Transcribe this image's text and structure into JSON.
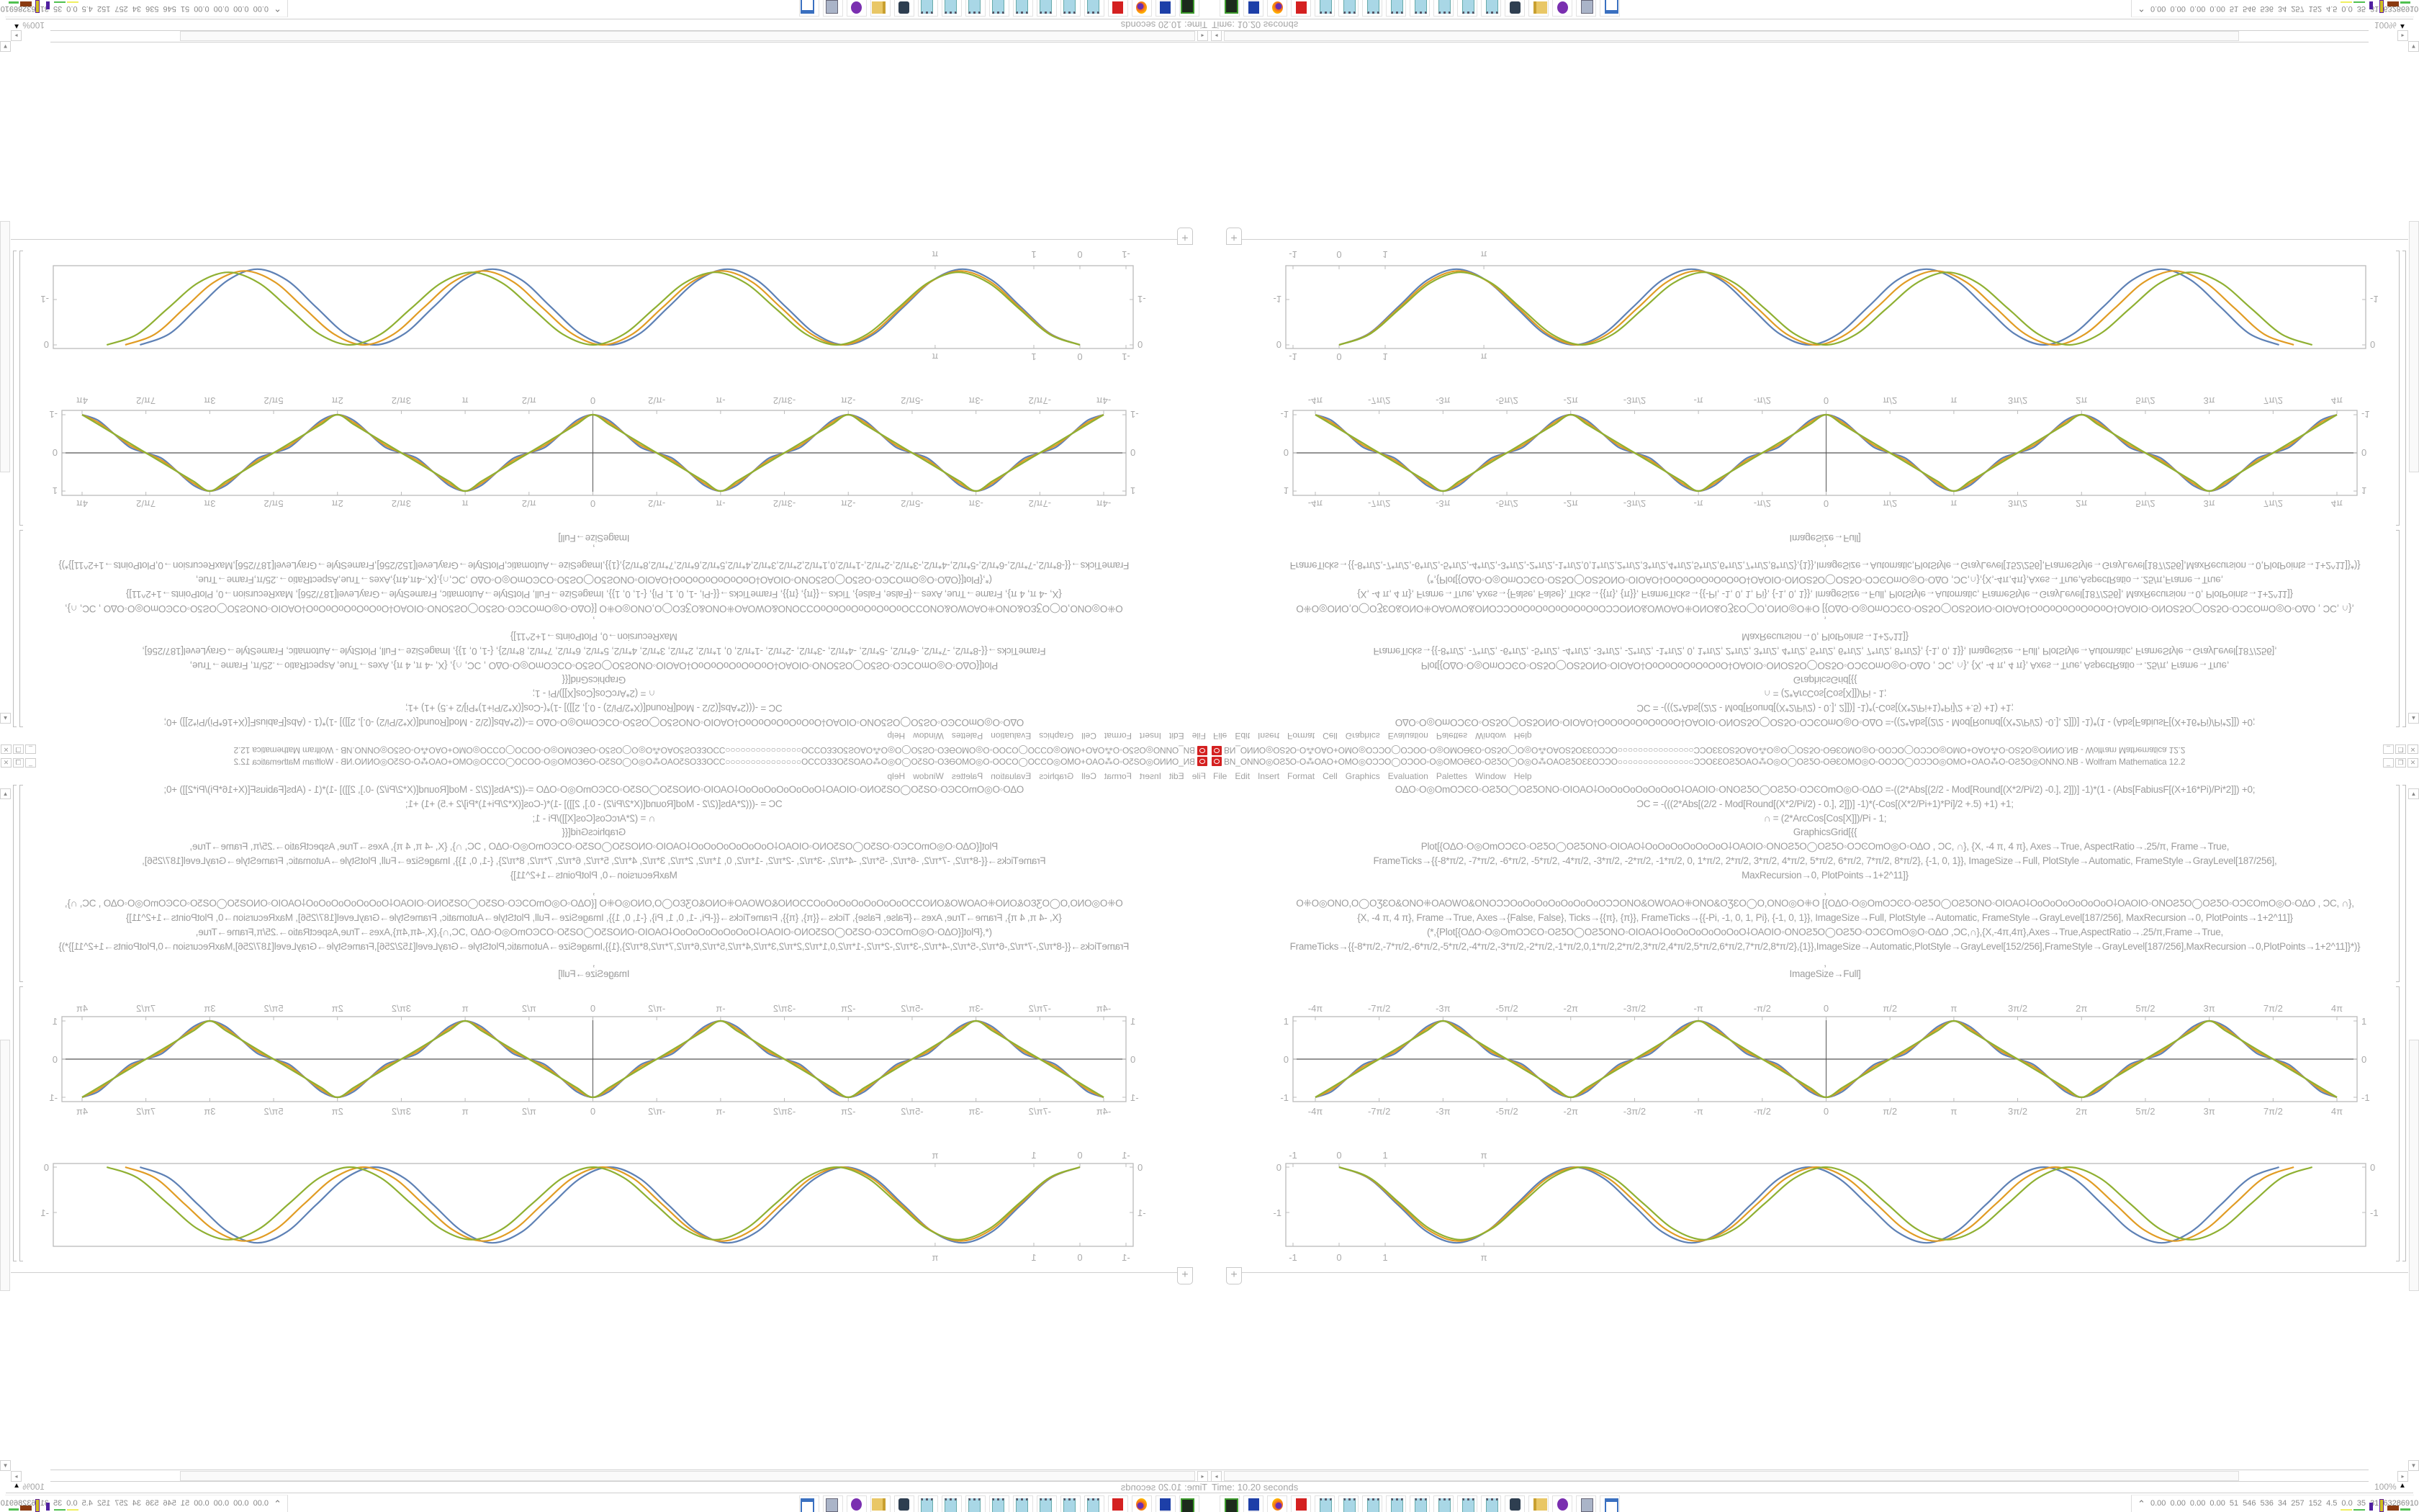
{
  "window": {
    "title": "BN_ONNO◎OƧƼO◦O⁂OAO+OMO◎OƆƆO◯OƆOO◦O◎OMOƏƐO◦OƧƼO◯O◎O⁂OAOƧƼOƐƐOƆƆO○○○○○○○○○○○○○○○ƆƆOƐƐOƧƼOAO⁂O◎O◯OƧƼO◦OƏƐOMO◎O◦OOƆO◯OƆƆO◎OMO+OAO⁂O◦OƧƼO◎ONNO.NB - Wolfram Mathematica 12.2",
    "controls": {
      "minimize": "_",
      "restore": "❐",
      "close": "✕"
    }
  },
  "menu": [
    "File",
    "Edit",
    "Insert",
    "Format",
    "Cell",
    "Graphics",
    "Evaluation",
    "Palettes",
    "Window",
    "Help"
  ],
  "notebook": {
    "code_lines": [
      "ΟΔΟ◦Ο◎ΟmΟϽϾΟ◦ΟƧƼΟ◯ΟƧƼΟNΟ◦ΟΙΟΑΟ⸸ΟοΟοΟοΟοΟοΟοΟ⸸ΟΑΟΙΟ◦ΟNΟƧƼΟ◯ΟƧƼΟ◦ΟϽϾΟmΟ◎Ο◦ΟΔΟ    =-((2*Abs[(2/2 - Mod[Round[(X*2/Pi/2) -0.], 2]])] -1)*(1 - (Abs[FabiusF[(X+16*Pi)/Pi*2]]) +0;",
      "ƆC = -(((2*Abs[(2/2 - Mod[Round[(X*2/Pi/2) - 0.], 2]])] -1)*(-Cos[(X*2/Pi+1)*Pi]/2 +.5) +1) +1;",
      "∩ = (2*ArcCos[Cos[X]])/Pi - 1;",
      "GraphicsGrid[{{",
      "Plot[{ΟΔΟ◦Ο◎ΟmΟϽϾΟ◦ΟƧƼΟ◯ΟƧƼΟNΟ◦ΟΙΟΑΟ⸸ΟοΟοΟοΟοΟοΟοΟ⸸ΟΑΟΙΟ◦ΟNΟƧƼΟ◯ΟƧƼΟ◦ΟϽϾΟmΟ◎Ο◦ΟΔΟ    , ƆC, ∩}, {X, -4 π, 4 π}, Axes→True, AspectRatio→.25/π, Frame→True,",
      "FrameTicks→{{-8*π/2, -7*π/2, -6*π/2, -5*π/2, -4*π/2, -3*π/2, -2*π/2, -1*π/2, 0, 1*π/2, 2*π/2, 3*π/2, 4*π/2, 5*π/2, 6*π/2, 7*π/2, 8*π/2}, {-1, 0, 1}}, ImageSize→Full, PlotStyle→Automatic, FrameStyle→GrayLevel[187/256],",
      "MaxRecursion→0, PlotPoints→1+2^11]}",
      ",",
      "Ο⁜Ο◎ΟNΟ,Ο◯ΟƷƐΟ&ΟNΟ⁜ΟΑΟWΟ&ΟNΟƆƆΟοΟοΟοΟοΟοΟοΟοΟƆƆΟNΟ&ΟWΟΑΟ⁜ΟNΟ&ΟƷƐΟ◯Ο,ΟNΟ◎Ο⁜Ο   [{ΟΔΟ◦Ο◎ΟmΟϽϾΟ◦ΟƧƼΟ◯ΟƧƼΟNΟ◦ΟΙΟΑΟ⸸ΟοΟοΟοΟοΟοΟοΟ⸸ΟΑΟΙΟ◦ΟNΟƧƼΟ◯ΟƧƼΟ◦ΟϽϾΟmΟ◎Ο◦ΟΔΟ    , ƆC, ∩},",
      "{X, -4 π, 4 π}, Frame→True, Axes→{False, False}, Ticks→{{π}, {π}}, FrameTicks→{{-Pi, -1, 0, 1, Pi}, {-1, 0, 1}}, ImageSize→Full, PlotStyle→Automatic, FrameStyle→GrayLevel[187/256], MaxRecursion→0, PlotPoints→1+2^11]}",
      "(*,{Plot[{ΟΔΟ◦Ο◎ΟmΟϽϾΟ◦ΟƧƼΟ◯ΟƧƼΟNΟ◦ΟΙΟΑΟ⸸ΟοΟοΟοΟοΟοΟοΟ⸸ΟΑΟΙΟ◦ΟNΟƧƼΟ◯ΟƧƼΟ◦ΟϽϾΟmΟ◎Ο◦ΟΔΟ    ,ƆC,∩},{X,-4π,4π},Axes→True,AspectRatio→.25/π,Frame→True,",
      "FrameTicks→{{-8*π/2,-7*π/2,-6*π/2,-5*π/2,-4*π/2,-3*π/2,-2*π/2,-1*π/2,0,1*π/2,2*π/2,3*π/2,4*π/2,5*π/2,6*π/2,7*π/2,8*π/2},{1}},ImageSize→Automatic,PlotStyle→GrayLevel[152/256],FrameStyle→GrayLevel[187/256],MaxRecursion→0,PlotPoints→1+2^11]}*)}",
      ",",
      "ImageSize→Full]"
    ],
    "add_cell_label": "+"
  },
  "chart_data": [
    {
      "type": "line",
      "x_range": [
        -12.566,
        12.566
      ],
      "y_range": [
        -1,
        1
      ],
      "frame": true,
      "axes": true,
      "x_ticks": [
        {
          "value": -12.566,
          "label": "-4π"
        },
        {
          "value": -10.996,
          "label": "-7π/2"
        },
        {
          "value": -9.425,
          "label": "-3π"
        },
        {
          "value": -7.854,
          "label": "-5π/2"
        },
        {
          "value": -6.283,
          "label": "-2π"
        },
        {
          "value": -4.712,
          "label": "-3π/2"
        },
        {
          "value": -3.142,
          "label": "-π"
        },
        {
          "value": -1.571,
          "label": "-π/2"
        },
        {
          "value": 0,
          "label": "0"
        },
        {
          "value": 1.571,
          "label": "π/2"
        },
        {
          "value": 3.142,
          "label": "π"
        },
        {
          "value": 4.712,
          "label": "3π/2"
        },
        {
          "value": 6.283,
          "label": "2π"
        },
        {
          "value": 7.854,
          "label": "5π/2"
        },
        {
          "value": 9.425,
          "label": "3π"
        },
        {
          "value": 10.996,
          "label": "7π/2"
        },
        {
          "value": 12.566,
          "label": "4π"
        }
      ],
      "y_ticks": [
        {
          "value": 1,
          "label": "1"
        },
        {
          "value": 0,
          "label": "0"
        },
        {
          "value": -1,
          "label": "-1"
        }
      ],
      "x": [
        -12.566,
        -12.174,
        -11.781,
        -11.388,
        -10.996,
        -10.603,
        -10.21,
        -9.817,
        -9.425,
        -9.032,
        -8.639,
        -8.247,
        -7.854,
        -7.461,
        -7.069,
        -6.676,
        -6.283,
        -5.89,
        -5.498,
        -5.105,
        -4.712,
        -4.32,
        -3.927,
        -3.534,
        -3.142,
        -2.749,
        -2.356,
        -1.963,
        -1.571,
        -1.178,
        -0.785,
        -0.393,
        0,
        0.393,
        0.785,
        1.178,
        1.571,
        1.963,
        2.356,
        2.749,
        3.142,
        3.534,
        3.927,
        4.32,
        4.712,
        5.105,
        5.498,
        5.89,
        6.283,
        6.676,
        7.069,
        7.461,
        7.854,
        8.247,
        8.639,
        9.032,
        9.425,
        9.817,
        10.21,
        10.603,
        10.996,
        11.388,
        11.781,
        12.174,
        12.566
      ],
      "series": [
        {
          "color": "#5E81B5",
          "values": [
            -1,
            -0.854,
            -0.5,
            -0.146,
            0,
            0.146,
            0.5,
            0.854,
            1,
            0.854,
            0.5,
            0.146,
            0,
            -0.146,
            -0.5,
            -0.854,
            -1,
            -0.854,
            -0.5,
            -0.146,
            0,
            0.146,
            0.5,
            0.854,
            1,
            0.854,
            0.5,
            0.146,
            0,
            -0.146,
            -0.5,
            -0.854,
            -1,
            -0.854,
            -0.5,
            -0.146,
            0,
            0.146,
            0.5,
            0.854,
            1,
            0.854,
            0.5,
            0.146,
            0,
            -0.146,
            -0.5,
            -0.854,
            -1,
            -0.854,
            -0.5,
            -0.146,
            0,
            0.146,
            0.5,
            0.854,
            1,
            0.854,
            0.5,
            0.146,
            0,
            -0.146,
            -0.5,
            -0.854,
            -1
          ]
        },
        {
          "color": "#E19C24",
          "values": [
            -1,
            -0.802,
            -0.5,
            -0.198,
            0,
            0.198,
            0.5,
            0.802,
            1,
            0.802,
            0.5,
            0.198,
            0,
            -0.198,
            -0.5,
            -0.802,
            -1,
            -0.802,
            -0.5,
            -0.198,
            0,
            0.198,
            0.5,
            0.802,
            1,
            0.802,
            0.5,
            0.198,
            0,
            -0.198,
            -0.5,
            -0.802,
            -1,
            -0.802,
            -0.5,
            -0.198,
            0,
            0.198,
            0.5,
            0.802,
            1,
            0.802,
            0.5,
            0.198,
            0,
            -0.198,
            -0.5,
            -0.802,
            -1,
            -0.802,
            -0.5,
            -0.198,
            0,
            0.198,
            0.5,
            0.802,
            1,
            0.802,
            0.5,
            0.198,
            0,
            -0.198,
            -0.5,
            -0.802,
            -1
          ]
        },
        {
          "color": "#8FB032",
          "values": [
            -1,
            -0.75,
            -0.5,
            -0.25,
            0,
            0.25,
            0.5,
            0.75,
            1,
            0.75,
            0.5,
            0.25,
            0,
            -0.25,
            -0.5,
            -0.75,
            -1,
            -0.75,
            -0.5,
            -0.25,
            0,
            0.25,
            0.5,
            0.75,
            1,
            0.75,
            0.5,
            0.25,
            0,
            -0.25,
            -0.5,
            -0.75,
            -1,
            -0.75,
            -0.5,
            -0.25,
            0,
            0.25,
            0.5,
            0.75,
            1,
            0.75,
            0.5,
            0.25,
            0,
            -0.25,
            -0.5,
            -0.75,
            -1,
            -0.75,
            -0.5,
            -0.25,
            0,
            0.25,
            0.5,
            0.75,
            1,
            0.75,
            0.5,
            0.25,
            0,
            -0.25,
            -0.5,
            -0.75,
            -1
          ]
        }
      ]
    },
    {
      "type": "line",
      "x_range": [
        -1.16,
        22.3
      ],
      "y_range": [
        -1.75,
        0.08
      ],
      "frame": true,
      "axes": false,
      "x_ticks": [
        {
          "value": -1,
          "label": "-1"
        },
        {
          "value": 0,
          "label": "0"
        },
        {
          "value": 1,
          "label": "1"
        },
        {
          "value": 3.142,
          "label": "π"
        }
      ],
      "y_ticks": [
        {
          "value": 0,
          "label": "0"
        },
        {
          "value": -1,
          "label": "-1"
        }
      ],
      "series": [
        {
          "color": "#5E81B5",
          "x": [
            0,
            0.64,
            1.28,
            1.91,
            2.55,
            3.19,
            3.83,
            4.46,
            5.1,
            5.74,
            6.38,
            7.01,
            7.65,
            8.29,
            8.93,
            9.56,
            10.2,
            10.84,
            11.48,
            12.11,
            12.75,
            13.39,
            14.03,
            14.66,
            15.3,
            15.94,
            16.58,
            17.21,
            17.85,
            18.49,
            19.13,
            19.76,
            20.4
          ],
          "values": [
            0,
            -0.245,
            -0.835,
            -1.425,
            -1.67,
            -1.425,
            -0.835,
            -0.245,
            0,
            -0.245,
            -0.835,
            -1.425,
            -1.67,
            -1.425,
            -0.835,
            -0.245,
            0,
            -0.245,
            -0.835,
            -1.425,
            -1.67,
            -1.425,
            -0.835,
            -0.245,
            0,
            -0.245,
            -0.835,
            -1.425,
            -1.67,
            -1.425,
            -0.835,
            -0.245,
            0
          ]
        },
        {
          "color": "#E19C24",
          "x": [
            0,
            0.65,
            1.3,
            1.94,
            2.59,
            3.24,
            3.89,
            4.53,
            5.18,
            5.83,
            6.48,
            7.12,
            7.77,
            8.42,
            9.07,
            9.71,
            10.36,
            11.01,
            11.66,
            12.3,
            12.95,
            13.6,
            14.25,
            14.89,
            15.54,
            16.19,
            16.84,
            17.48,
            18.13,
            18.78,
            19.43,
            20.07,
            20.72
          ],
          "values": [
            0,
            -0.239,
            -0.815,
            -1.391,
            -1.63,
            -1.391,
            -0.815,
            -0.239,
            0,
            -0.239,
            -0.815,
            -1.391,
            -1.63,
            -1.391,
            -0.815,
            -0.239,
            0,
            -0.239,
            -0.815,
            -1.391,
            -1.63,
            -1.391,
            -0.815,
            -0.239,
            0,
            -0.239,
            -0.815,
            -1.391,
            -1.63,
            -1.391,
            -0.815,
            -0.239,
            0
          ]
        },
        {
          "color": "#8FB032",
          "x": [
            0,
            0.66,
            1.32,
            1.98,
            2.64,
            3.3,
            3.96,
            4.62,
            5.28,
            5.94,
            6.6,
            7.26,
            7.92,
            8.58,
            9.24,
            9.9,
            10.56,
            11.22,
            11.88,
            12.54,
            13.2,
            13.86,
            14.52,
            15.18,
            15.84,
            16.5,
            17.16,
            17.82,
            18.48,
            19.14,
            19.8,
            20.46,
            21.12
          ],
          "values": [
            0,
            -0.234,
            -0.8,
            -1.366,
            -1.6,
            -1.366,
            -0.8,
            -0.234,
            0,
            -0.234,
            -0.8,
            -1.366,
            -1.6,
            -1.366,
            -0.8,
            -0.234,
            0,
            -0.234,
            -0.8,
            -1.366,
            -1.6,
            -1.366,
            -0.8,
            -0.234,
            0,
            -0.234,
            -0.8,
            -1.366,
            -1.6,
            -1.366,
            -0.8,
            -0.234,
            0
          ]
        }
      ]
    }
  ],
  "status": {
    "timing": "Time: 10.20 seconds",
    "zoom": "100%",
    "zoom_arrow": "▲"
  },
  "scrollbar": {
    "left_arrow": "◂",
    "right_arrow": "▸",
    "up_arrow": "▲",
    "down_arrow": "▼"
  },
  "taskbar": {
    "icons": [
      "terminal-icon",
      "floppy-64-icon",
      "firefox-icon",
      "mathematica-icon",
      "notepad-icon",
      "notepad-icon",
      "notepad-icon",
      "notepad-icon",
      "notepad-icon",
      "notepad-icon",
      "notepad-icon",
      "notepad-icon",
      "webcam-icon",
      "folder-icon",
      "purple-app-icon",
      "scroll-icon",
      "window-icon"
    ],
    "tray_expand": "⌃",
    "tray_stats": "0.00 0.00 0.00 0.00 51 546 536 34 257 152 4.5 0.0 35 31 63286910"
  }
}
